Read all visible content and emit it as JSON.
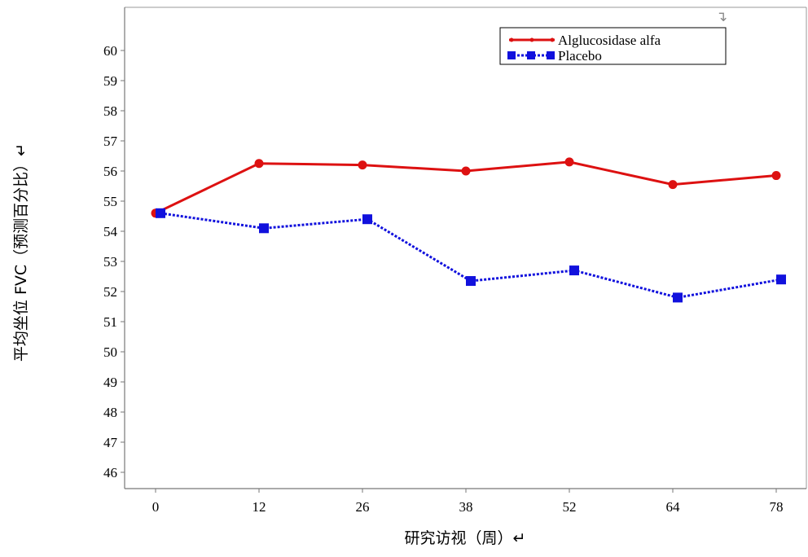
{
  "chart_data": {
    "type": "line",
    "x": [
      0,
      12,
      26,
      38,
      52,
      64,
      78
    ],
    "xlabel": "研究访视（周）↵",
    "ylabel": "平均坐位 FVC（预测百分比）↵",
    "ylim": [
      46,
      60
    ],
    "yticks": [
      46,
      47,
      48,
      49,
      50,
      51,
      52,
      53,
      54,
      55,
      56,
      57,
      58,
      59,
      60
    ],
    "grid": false,
    "legend_position": "top-right",
    "top_right_mark": "↴",
    "series": [
      {
        "name": "Alglucosidase alfa",
        "values": [
          54.6,
          56.25,
          56.2,
          56.0,
          56.3,
          55.55,
          55.85
        ],
        "color": "#dd1111",
        "marker": "circle",
        "line_style": "solid"
      },
      {
        "name": "Placebo",
        "values": [
          54.6,
          54.1,
          54.4,
          52.35,
          52.7,
          51.8,
          52.4
        ],
        "color": "#1111dd",
        "marker": "square",
        "line_style": "dotted"
      }
    ]
  }
}
